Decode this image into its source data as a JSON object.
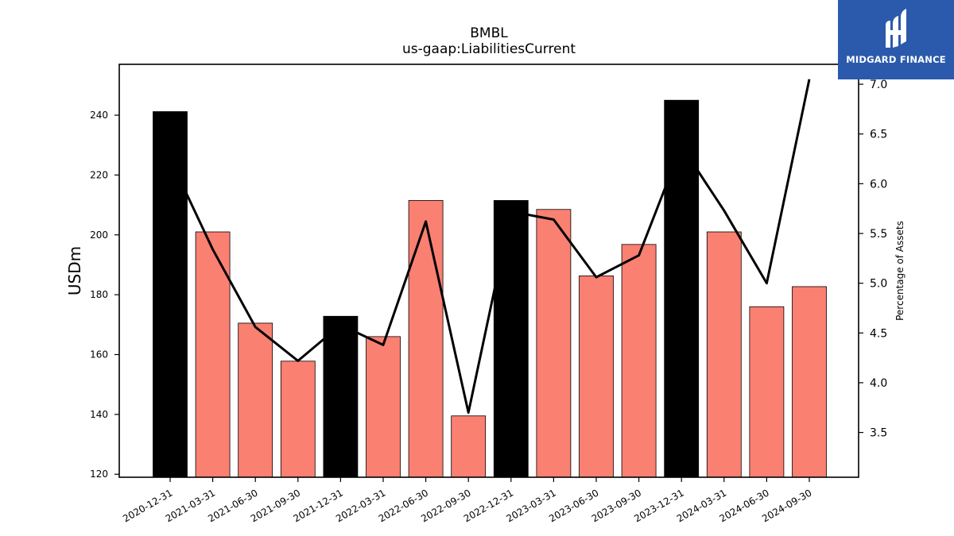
{
  "chart_data": {
    "type": "bar",
    "title": "BMBL",
    "subtitle": "us-gaap:LiabilitiesCurrent",
    "ylabel": "USDm",
    "y2label": "Percentage of Assets",
    "ylim": [
      119,
      257
    ],
    "y2lim": [
      3.05,
      7.2
    ],
    "yticks": [
      120,
      140,
      160,
      180,
      200,
      220,
      240
    ],
    "y2ticks": [
      3.5,
      4.0,
      4.5,
      5.0,
      5.5,
      6.0,
      6.5,
      7.0
    ],
    "categories": [
      "2020-12-31",
      "2021-03-31",
      "2021-06-30",
      "2021-09-30",
      "2021-12-31",
      "2022-03-31",
      "2022-06-30",
      "2022-09-30",
      "2022-12-31",
      "2023-03-31",
      "2023-06-30",
      "2023-09-30",
      "2023-12-31",
      "2024-03-31",
      "2024-06-30",
      "2024-09-30"
    ],
    "series": [
      {
        "type": "bar",
        "values": [
          241.2,
          201.0,
          170.5,
          157.8,
          172.8,
          166.0,
          211.5,
          139.5,
          211.5,
          208.5,
          186.3,
          196.8,
          245.0,
          201.0,
          176.0,
          182.7
        ],
        "highlight": [
          true,
          false,
          false,
          false,
          true,
          false,
          false,
          false,
          true,
          false,
          false,
          false,
          true,
          false,
          false,
          false
        ]
      },
      {
        "type": "line",
        "axis": "right",
        "values": [
          6.25,
          5.34,
          4.56,
          4.22,
          4.58,
          4.38,
          5.62,
          3.7,
          5.72,
          5.64,
          5.06,
          5.28,
          6.38,
          5.73,
          5.0,
          7.05
        ]
      }
    ],
    "colors": {
      "bar": "#fa8072",
      "bar_highlight": "#000000",
      "line": "#000000"
    }
  },
  "logo": {
    "text": "MIDGARD FINANCE",
    "background": "#2b5aac"
  }
}
